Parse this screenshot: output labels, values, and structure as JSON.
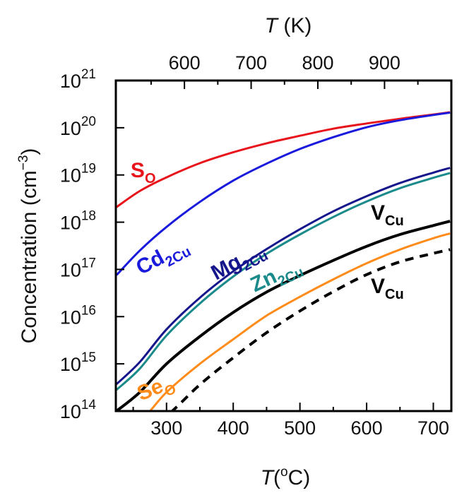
{
  "chart_data": {
    "type": "line",
    "title": "",
    "xlabel_bottom": {
      "italic": "T",
      "text": "(",
      "sup": "o",
      "suffix": "C)"
    },
    "xlabel_top": {
      "italic": "T",
      "text": " (K)"
    },
    "ylabel": {
      "text": "Concentration (cm",
      "sup": "−3",
      "suffix": ")"
    },
    "xlim": [
      224,
      727
    ],
    "ylim_log10": [
      14,
      21
    ],
    "y_scale": "log",
    "x_ticks": [
      300,
      400,
      500,
      600,
      700
    ],
    "x_tick_labels": [
      "300",
      "400",
      "500",
      "600",
      "700"
    ],
    "top_ticks_K": [
      600,
      700,
      800,
      900
    ],
    "top_tick_labels": [
      "600",
      "700",
      "800",
      "900"
    ],
    "y_ticks": [
      {
        "base": "10",
        "exp": "14"
      },
      {
        "base": "10",
        "exp": "15"
      },
      {
        "base": "10",
        "exp": "16"
      },
      {
        "base": "10",
        "exp": "17"
      },
      {
        "base": "10",
        "exp": "18"
      },
      {
        "base": "10",
        "exp": "19"
      },
      {
        "base": "10",
        "exp": "20"
      },
      {
        "base": "10",
        "exp": "21"
      }
    ],
    "x": [
      225,
      260,
      300,
      350,
      400,
      450,
      500,
      550,
      600,
      650,
      700,
      725
    ],
    "series": [
      {
        "key": "SO",
        "color": "#e8141c",
        "dash": "solid",
        "log10_values": [
          18.32,
          18.66,
          18.95,
          19.25,
          19.48,
          19.67,
          19.83,
          19.98,
          20.09,
          20.19,
          20.28,
          20.33
        ]
      },
      {
        "key": "Cd2Cu",
        "color": "#1a1adc",
        "dash": "solid",
        "log10_values": [
          16.88,
          17.4,
          17.9,
          18.43,
          18.88,
          19.24,
          19.55,
          19.8,
          20.01,
          20.16,
          20.27,
          20.32
        ]
      },
      {
        "key": "Mg2Cu",
        "color": "#16168c",
        "dash": "solid",
        "log10_values": [
          14.57,
          15.04,
          15.73,
          16.4,
          16.96,
          17.43,
          17.85,
          18.23,
          18.55,
          18.83,
          19.05,
          19.15
        ]
      },
      {
        "key": "Zn2Cu",
        "color": "#1a8a8a",
        "dash": "solid",
        "log10_values": [
          14.45,
          14.9,
          15.6,
          16.28,
          16.85,
          17.33,
          17.74,
          18.11,
          18.44,
          18.72,
          18.94,
          19.04
        ]
      },
      {
        "key": "VCu_solid",
        "color": "#000000",
        "dash": "solid",
        "log10_values": [
          14.0,
          14.4,
          15.0,
          15.58,
          16.09,
          16.52,
          16.87,
          17.19,
          17.49,
          17.74,
          17.93,
          18.02
        ]
      },
      {
        "key": "SeO",
        "color": "#ff8c1a",
        "dash": "solid",
        "log10_values": [
          13.8,
          13.8,
          14.4,
          15.0,
          15.52,
          16.02,
          16.42,
          16.79,
          17.13,
          17.42,
          17.66,
          17.76
        ]
      },
      {
        "key": "VCu_dashed",
        "color": "#000000",
        "dash": "dashed",
        "log10_values": [
          13.6,
          13.6,
          13.9,
          14.56,
          15.13,
          15.66,
          16.12,
          16.53,
          16.89,
          17.16,
          17.34,
          17.42
        ]
      }
    ],
    "annotations": [
      {
        "key": "SO",
        "base": "S",
        "sub": "O",
        "color": "#e8141c",
        "x_data": 265,
        "y_log10": 18.95
      },
      {
        "key": "Cd2Cu",
        "base": "Cd",
        "sub": "2Cu",
        "color": "#1a1adc",
        "x_data": 298,
        "y_log10": 17.15
      },
      {
        "key": "Mg2Cu",
        "base": "Mg",
        "sub": "2Cu",
        "color": "#16168c",
        "x_data": 412,
        "y_log10": 17.05
      },
      {
        "key": "Zn2Cu",
        "base": "Zn",
        "sub": "2Cu",
        "color": "#1a8a8a",
        "x_data": 468,
        "y_log10": 16.75
      },
      {
        "key": "VCu_solid",
        "base": "V",
        "sub": "Cu",
        "color": "#000000",
        "x_data": 631,
        "y_log10": 18.05
      },
      {
        "key": "VCu_dashed",
        "base": "V",
        "sub": "Cu",
        "color": "#000000",
        "x_data": 631,
        "y_log10": 16.5
      },
      {
        "key": "SeO",
        "base": "Se",
        "sub": "O",
        "color": "#ff8c1a",
        "x_data": 287,
        "y_log10": 14.36
      }
    ]
  }
}
